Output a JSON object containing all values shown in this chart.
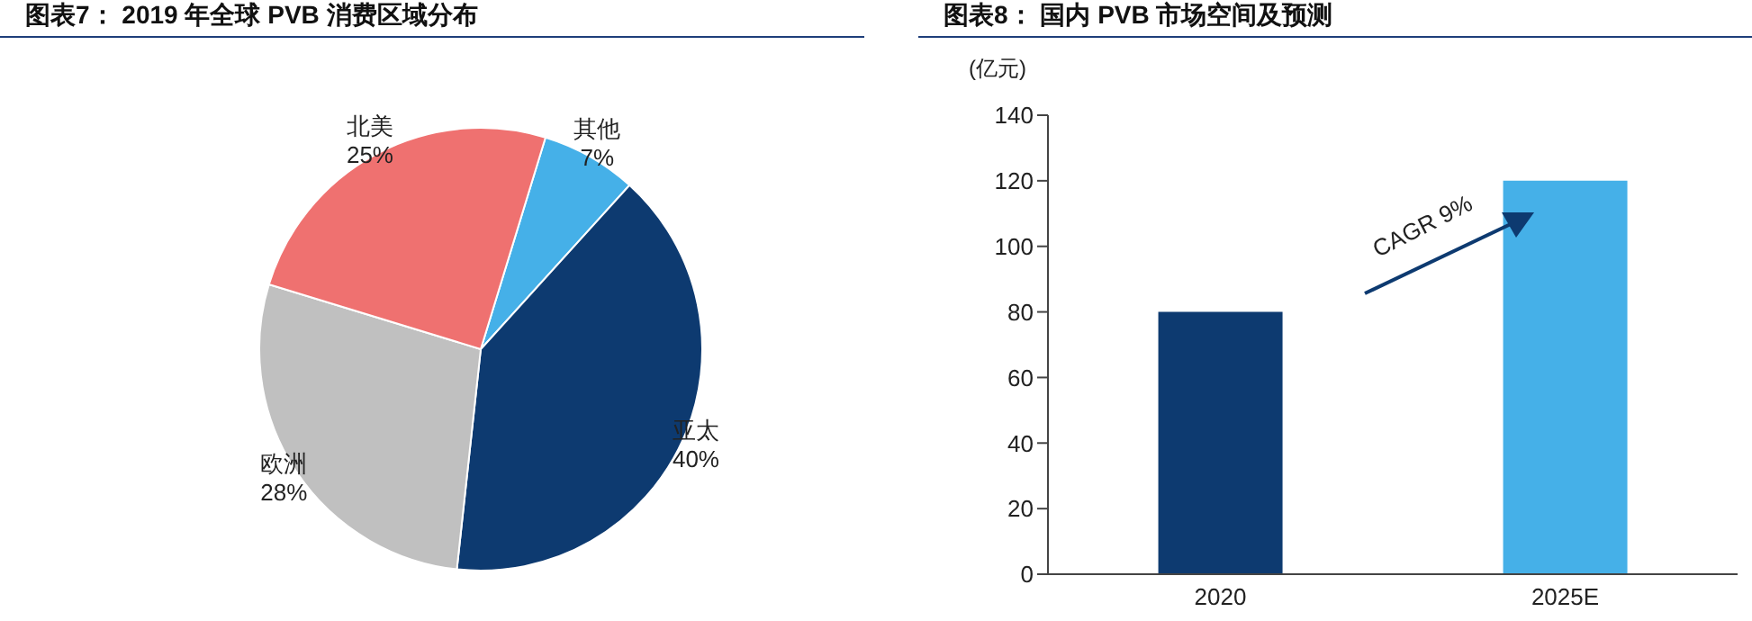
{
  "chart_data": [
    {
      "type": "pie",
      "title": "图表7： 2019 年全球 PVB 消费区域分布",
      "categories": [
        "其他",
        "亚太",
        "欧洲",
        "北美"
      ],
      "values": [
        7,
        40,
        28,
        25
      ],
      "colors": [
        "#45b0e8",
        "#0d3a70",
        "#c0c0c0",
        "#ef7170"
      ],
      "value_labels": [
        "7%",
        "40%",
        "28%",
        "25%"
      ],
      "legend": false
    },
    {
      "type": "bar",
      "title": "图表8： 国内 PVB 市场空间及预测",
      "ylabel": "(亿元)",
      "categories": [
        "2020",
        "2025E"
      ],
      "values": [
        80,
        120
      ],
      "colors": [
        "#0d3a70",
        "#45b0e8"
      ],
      "ylim": [
        0,
        140
      ],
      "yticks": [
        0,
        20,
        40,
        60,
        80,
        100,
        120,
        140
      ],
      "grid": false,
      "legend": false,
      "annotations": [
        "CAGR 9%"
      ]
    }
  ]
}
